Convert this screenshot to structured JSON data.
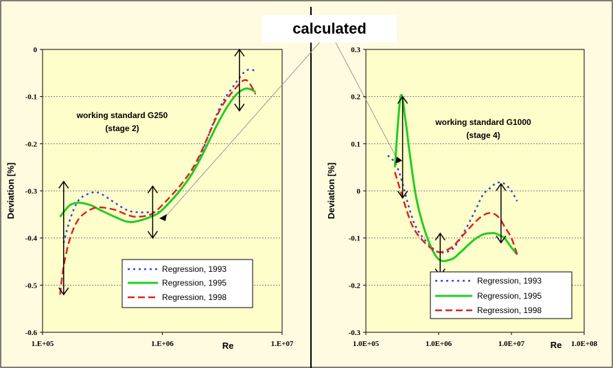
{
  "callout": "calculated",
  "colors": {
    "r1993": "#3344dd",
    "r1995": "#22cc22",
    "r1998": "#dd2222",
    "plot_bg": "#fefecb",
    "page_bg": "#fffbe0"
  },
  "chart_data": [
    {
      "type": "line",
      "xlabel": "Re",
      "ylabel": "Deviation [%]",
      "x_scale": "log",
      "xlim": [
        100000,
        10000000
      ],
      "ylim": [
        -0.6,
        0
      ],
      "y_ticks": [
        "0",
        "-0.1",
        "-0.2",
        "-0.3",
        "-0.4",
        "-0.5",
        "-0.6"
      ],
      "x_ticks": [
        "1.E+05",
        "1.E+06",
        "1.E+07"
      ],
      "annotation": [
        "working standard G250",
        "(stage 2)"
      ],
      "legend": [
        "Regression, 1993",
        "Regression, 1995",
        "Regression, 1998"
      ],
      "series": [
        {
          "name": "Regression, 1993",
          "x": [
            150000,
            170000,
            200000,
            250000,
            300000,
            400000,
            500000,
            600000,
            800000,
            1000000,
            1500000,
            2000000,
            3000000,
            4000000,
            5000000,
            6000000
          ],
          "y": [
            -0.41,
            -0.36,
            -0.32,
            -0.305,
            -0.305,
            -0.325,
            -0.34,
            -0.345,
            -0.345,
            -0.34,
            -0.29,
            -0.235,
            -0.125,
            -0.075,
            -0.045,
            -0.045
          ]
        },
        {
          "name": "Regression, 1995",
          "x": [
            140000,
            150000,
            170000,
            200000,
            250000,
            300000,
            400000,
            500000,
            600000,
            800000,
            1000000,
            1500000,
            2000000,
            3000000,
            4000000,
            5000000,
            6000000
          ],
          "y": [
            -0.355,
            -0.345,
            -0.33,
            -0.325,
            -0.33,
            -0.34,
            -0.355,
            -0.365,
            -0.365,
            -0.355,
            -0.34,
            -0.29,
            -0.24,
            -0.15,
            -0.1,
            -0.083,
            -0.09
          ]
        },
        {
          "name": "Regression, 1998",
          "x": [
            140000,
            150000,
            170000,
            200000,
            250000,
            300000,
            400000,
            500000,
            600000,
            800000,
            1000000,
            1500000,
            2000000,
            3000000,
            4000000,
            5000000,
            6000000
          ],
          "y": [
            -0.52,
            -0.46,
            -0.4,
            -0.36,
            -0.34,
            -0.335,
            -0.34,
            -0.35,
            -0.355,
            -0.35,
            -0.33,
            -0.28,
            -0.23,
            -0.13,
            -0.085,
            -0.065,
            -0.095
          ]
        }
      ],
      "arrows": [
        {
          "x": 150000,
          "y1": -0.28,
          "y2": -0.52
        },
        {
          "x": 830000,
          "y1": -0.29,
          "y2": -0.4
        },
        {
          "x": 4400000,
          "y1": 0,
          "y2": -0.13
        }
      ]
    },
    {
      "type": "line",
      "xlabel": "Re",
      "ylabel": "Deviation [%]",
      "x_scale": "log",
      "xlim": [
        100000,
        100000000
      ],
      "ylim": [
        -0.3,
        0.3
      ],
      "y_ticks": [
        "0.3",
        "0.2",
        "0.1",
        "0",
        "-0.1",
        "-0.2",
        "-0.3"
      ],
      "x_ticks": [
        "1.0E+05",
        "1.0E+06",
        "1.0E+07",
        "1.0E+08"
      ],
      "annotation": [
        "working standard G1000",
        "(stage 4)"
      ],
      "legend": [
        "Regression, 1993",
        "Regression, 1995",
        "Regression, 1998"
      ],
      "series": [
        {
          "name": "Regression, 1993",
          "x": [
            200000,
            250000,
            300000,
            400000,
            500000,
            700000,
            1000000,
            1500000,
            2000000,
            3000000,
            4000000,
            5000000,
            6000000,
            7000000,
            8000000,
            10000000,
            12000000
          ],
          "y": [
            0.075,
            0.06,
            0.03,
            -0.04,
            -0.08,
            -0.11,
            -0.13,
            -0.125,
            -0.1,
            -0.05,
            -0.01,
            0.005,
            0.015,
            0.018,
            0.015,
            0,
            -0.022
          ]
        },
        {
          "name": "Regression, 1995",
          "x": [
            250000,
            300000,
            350000,
            400000,
            500000,
            700000,
            1000000,
            1500000,
            2000000,
            3000000,
            4000000,
            5000000,
            6000000,
            7000000,
            8000000,
            10000000,
            12000000
          ],
          "y": [
            0.05,
            0.2,
            0.15,
            0.08,
            -0.02,
            -0.1,
            -0.145,
            -0.145,
            -0.13,
            -0.105,
            -0.093,
            -0.09,
            -0.09,
            -0.095,
            -0.1,
            -0.12,
            -0.135
          ]
        },
        {
          "name": "Regression, 1998",
          "x": [
            250000,
            300000,
            400000,
            500000,
            700000,
            1000000,
            1500000,
            2000000,
            3000000,
            4000000,
            5000000,
            6000000,
            7000000,
            8000000,
            10000000,
            12000000
          ],
          "y": [
            0.04,
            0.0,
            -0.06,
            -0.09,
            -0.115,
            -0.13,
            -0.12,
            -0.1,
            -0.07,
            -0.053,
            -0.047,
            -0.05,
            -0.06,
            -0.075,
            -0.1,
            -0.135
          ]
        }
      ],
      "arrows": [
        {
          "x": 320000,
          "y1": 0.2,
          "y2": -0.015
        },
        {
          "x": 1050000,
          "y1": -0.09,
          "y2": -0.18
        },
        {
          "x": 7200000,
          "y1": 0.015,
          "y2": -0.11
        }
      ]
    }
  ]
}
